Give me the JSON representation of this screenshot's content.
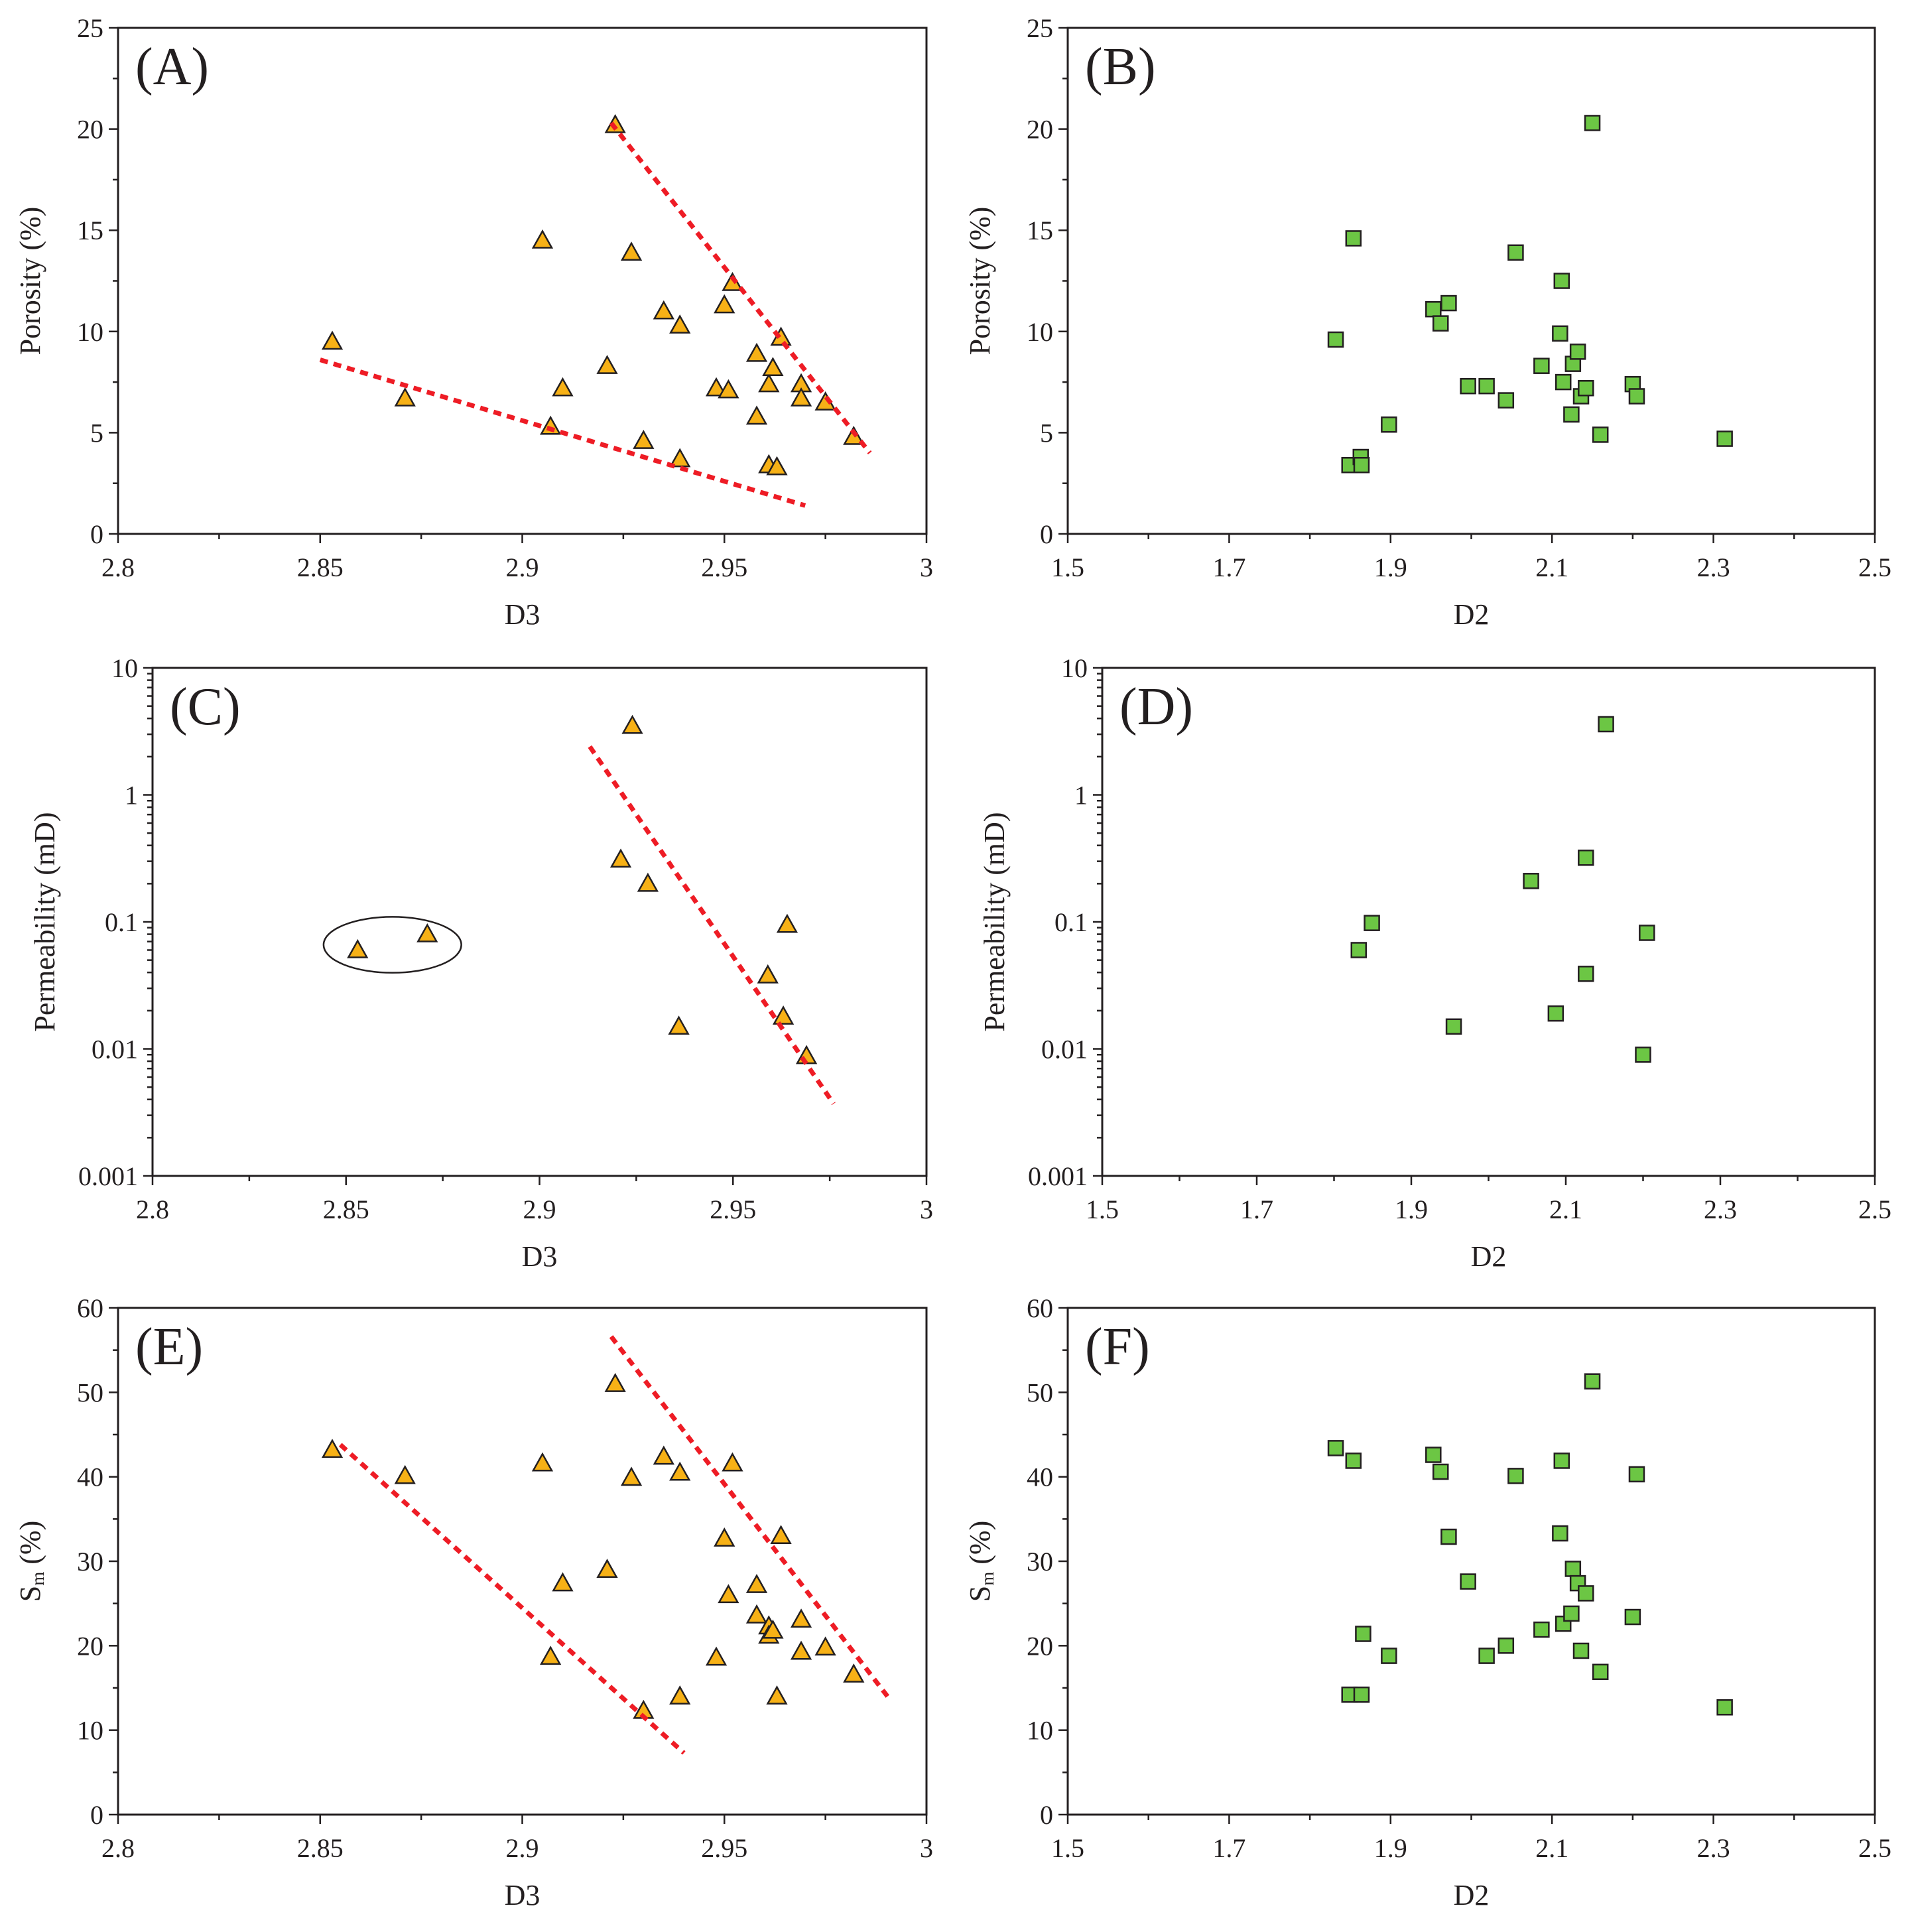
{
  "chart_data": [
    {
      "id": "A",
      "type": "scatter",
      "panel_label": "(A)",
      "xlabel": "D3",
      "ylabel": "Porosity (%)",
      "xlim": [
        2.8,
        3.0
      ],
      "ylim": [
        0,
        25
      ],
      "yscale": "linear",
      "xticks": [
        2.8,
        2.85,
        2.9,
        2.95,
        3.0
      ],
      "xtick_labels": [
        "2.8",
        "2.85",
        "2.9",
        "2.95",
        "3"
      ],
      "yticks": [
        0,
        5,
        10,
        15,
        20,
        25
      ],
      "ytick_labels": [
        "0",
        "5",
        "10",
        "15",
        "20",
        "25"
      ],
      "marker": "triangle",
      "color": "#f7b116",
      "points": [
        [
          2.853,
          9.5
        ],
        [
          2.871,
          6.7
        ],
        [
          2.905,
          14.5
        ],
        [
          2.907,
          5.3
        ],
        [
          2.91,
          7.2
        ],
        [
          2.921,
          8.3
        ],
        [
          2.923,
          20.2
        ],
        [
          2.927,
          13.9
        ],
        [
          2.93,
          4.6
        ],
        [
          2.935,
          11.0
        ],
        [
          2.939,
          10.3
        ],
        [
          2.939,
          3.7
        ],
        [
          2.948,
          7.2
        ],
        [
          2.95,
          11.3
        ],
        [
          2.951,
          7.1
        ],
        [
          2.952,
          12.4
        ],
        [
          2.958,
          8.9
        ],
        [
          2.958,
          5.8
        ],
        [
          2.961,
          7.4
        ],
        [
          2.961,
          3.4
        ],
        [
          2.962,
          8.2
        ],
        [
          2.963,
          3.3
        ],
        [
          2.964,
          9.7
        ],
        [
          2.969,
          7.4
        ],
        [
          2.969,
          6.7
        ],
        [
          2.975,
          6.5
        ],
        [
          2.982,
          4.8
        ]
      ],
      "trendlines": [
        [
          [
            2.85,
            8.6
          ],
          [
            2.97,
            1.4
          ]
        ],
        [
          [
            2.922,
            20.3
          ],
          [
            2.986,
            4.0
          ]
        ]
      ]
    },
    {
      "id": "B",
      "type": "scatter",
      "panel_label": "(B)",
      "xlabel": "D2",
      "ylabel": "Porosity (%)",
      "xlim": [
        1.5,
        2.5
      ],
      "ylim": [
        0,
        25
      ],
      "yscale": "linear",
      "xticks": [
        1.5,
        1.7,
        1.9,
        2.1,
        2.3,
        2.5
      ],
      "xtick_labels": [
        "1.5",
        "1.7",
        "1.9",
        "2.1",
        "2.3",
        "2.5"
      ],
      "yticks": [
        0,
        5,
        10,
        15,
        20,
        25
      ],
      "ytick_labels": [
        "0",
        "5",
        "10",
        "15",
        "20",
        "25"
      ],
      "marker": "square",
      "color": "#6cc644",
      "points": [
        [
          1.832,
          9.6
        ],
        [
          1.849,
          3.4
        ],
        [
          1.854,
          14.6
        ],
        [
          1.863,
          3.8
        ],
        [
          1.864,
          3.4
        ],
        [
          1.898,
          5.4
        ],
        [
          1.953,
          11.1
        ],
        [
          1.962,
          10.4
        ],
        [
          1.972,
          11.4
        ],
        [
          1.996,
          7.3
        ],
        [
          2.019,
          7.3
        ],
        [
          2.043,
          6.6
        ],
        [
          2.055,
          13.9
        ],
        [
          2.087,
          8.3
        ],
        [
          2.11,
          9.9
        ],
        [
          2.112,
          12.5
        ],
        [
          2.114,
          7.5
        ],
        [
          2.124,
          5.9
        ],
        [
          2.126,
          8.4
        ],
        [
          2.132,
          9.0
        ],
        [
          2.136,
          6.8
        ],
        [
          2.142,
          7.2
        ],
        [
          2.15,
          20.3
        ],
        [
          2.16,
          4.9
        ],
        [
          2.2,
          7.4
        ],
        [
          2.205,
          6.8
        ],
        [
          2.314,
          4.7
        ]
      ],
      "trendlines": []
    },
    {
      "id": "C",
      "type": "scatter",
      "panel_label": "(C)",
      "xlabel": "D3",
      "ylabel": "Permeability (mD)",
      "xlim": [
        2.8,
        3.0
      ],
      "ylim": [
        0.001,
        10
      ],
      "yscale": "log",
      "xticks": [
        2.8,
        2.85,
        2.9,
        2.95,
        3.0
      ],
      "xtick_labels": [
        "2.8",
        "2.85",
        "2.9",
        "2.95",
        "3"
      ],
      "yticks": [
        0.001,
        0.01,
        0.1,
        1,
        10
      ],
      "ytick_labels": [
        "0.001",
        "0.01",
        "0.1",
        "1",
        "10"
      ],
      "marker": "triangle",
      "color": "#f7b116",
      "points": [
        [
          2.853,
          0.06
        ],
        [
          2.871,
          0.08
        ],
        [
          2.921,
          0.31
        ],
        [
          2.924,
          3.5
        ],
        [
          2.928,
          0.2
        ],
        [
          2.936,
          0.015
        ],
        [
          2.959,
          0.038
        ],
        [
          2.963,
          0.018
        ],
        [
          2.964,
          0.095
        ],
        [
          2.969,
          0.0088
        ]
      ],
      "trendlines": [
        [
          [
            2.913,
            2.4
          ],
          [
            2.976,
            0.0037
          ]
        ]
      ],
      "ellipse": {
        "cx": 2.862,
        "cy": 0.066,
        "rx": 0.0178,
        "ry_decades": 0.22
      }
    },
    {
      "id": "D",
      "type": "scatter",
      "panel_label": "(D)",
      "xlabel": "D2",
      "ylabel": "Permeability (mD)",
      "xlim": [
        1.5,
        2.5
      ],
      "ylim": [
        0.001,
        10
      ],
      "yscale": "log",
      "xticks": [
        1.5,
        1.7,
        1.9,
        2.1,
        2.3,
        2.5
      ],
      "xtick_labels": [
        "1.5",
        "1.7",
        "1.9",
        "2.1",
        "2.3",
        "2.5"
      ],
      "yticks": [
        0.001,
        0.01,
        0.1,
        1,
        10
      ],
      "ytick_labels": [
        "0.001",
        "0.01",
        "0.1",
        "1",
        "10"
      ],
      "marker": "square",
      "color": "#6cc644",
      "points": [
        [
          1.832,
          0.06
        ],
        [
          1.849,
          0.098
        ],
        [
          1.955,
          0.015
        ],
        [
          2.055,
          0.21
        ],
        [
          2.087,
          0.019
        ],
        [
          2.126,
          0.32
        ],
        [
          2.126,
          0.039
        ],
        [
          2.152,
          3.6
        ],
        [
          2.2,
          0.009
        ],
        [
          2.205,
          0.082
        ]
      ],
      "trendlines": []
    },
    {
      "id": "E",
      "type": "scatter",
      "panel_label": "(E)",
      "xlabel": "D3",
      "ylabel": "Sm (%)",
      "ylabel_main": "S",
      "ylabel_sub": "m",
      "ylabel_rest": " (%)",
      "xlim": [
        2.8,
        3.0
      ],
      "ylim": [
        0,
        60
      ],
      "yscale": "linear",
      "xticks": [
        2.8,
        2.85,
        2.9,
        2.95,
        3.0
      ],
      "xtick_labels": [
        "2.8",
        "2.85",
        "2.9",
        "2.95",
        "3"
      ],
      "yticks": [
        0,
        10,
        20,
        30,
        40,
        50,
        60
      ],
      "ytick_labels": [
        "0",
        "10",
        "20",
        "30",
        "40",
        "50",
        "60"
      ],
      "marker": "triangle",
      "color": "#f7b116",
      "points": [
        [
          2.853,
          43.2
        ],
        [
          2.871,
          40.1
        ],
        [
          2.905,
          41.6
        ],
        [
          2.907,
          18.7
        ],
        [
          2.91,
          27.4
        ],
        [
          2.921,
          29.0
        ],
        [
          2.923,
          51.0
        ],
        [
          2.927,
          39.9
        ],
        [
          2.93,
          12.3
        ],
        [
          2.935,
          42.4
        ],
        [
          2.939,
          40.5
        ],
        [
          2.939,
          14.0
        ],
        [
          2.948,
          18.6
        ],
        [
          2.95,
          32.7
        ],
        [
          2.951,
          26.0
        ],
        [
          2.952,
          41.6
        ],
        [
          2.958,
          27.2
        ],
        [
          2.958,
          23.6
        ],
        [
          2.961,
          22.3
        ],
        [
          2.961,
          21.2
        ],
        [
          2.962,
          21.8
        ],
        [
          2.963,
          14.0
        ],
        [
          2.964,
          33.0
        ],
        [
          2.969,
          23.1
        ],
        [
          2.969,
          19.3
        ],
        [
          2.975,
          19.8
        ],
        [
          2.982,
          16.6
        ]
      ],
      "trendlines": [
        [
          [
            2.855,
            43.8
          ],
          [
            2.94,
            7.3
          ]
        ],
        [
          [
            2.922,
            56.6
          ],
          [
            2.991,
            13.6
          ]
        ]
      ]
    },
    {
      "id": "F",
      "type": "scatter",
      "panel_label": "(F)",
      "xlabel": "D2",
      "ylabel": "Sm (%)",
      "ylabel_main": "S",
      "ylabel_sub": "m",
      "ylabel_rest": " (%)",
      "xlim": [
        1.5,
        2.5
      ],
      "ylim": [
        0,
        60
      ],
      "yscale": "linear",
      "xticks": [
        1.5,
        1.7,
        1.9,
        2.1,
        2.3,
        2.5
      ],
      "xtick_labels": [
        "1.5",
        "1.7",
        "1.9",
        "2.1",
        "2.3",
        "2.5"
      ],
      "yticks": [
        0,
        10,
        20,
        30,
        40,
        50,
        60
      ],
      "ytick_labels": [
        "0",
        "10",
        "20",
        "30",
        "40",
        "50",
        "60"
      ],
      "marker": "square",
      "color": "#6cc644",
      "points": [
        [
          1.832,
          43.4
        ],
        [
          1.849,
          14.2
        ],
        [
          1.854,
          41.9
        ],
        [
          1.864,
          14.2
        ],
        [
          1.866,
          21.4
        ],
        [
          1.898,
          18.8
        ],
        [
          1.953,
          42.6
        ],
        [
          1.962,
          40.6
        ],
        [
          1.972,
          32.9
        ],
        [
          1.996,
          27.6
        ],
        [
          2.019,
          18.8
        ],
        [
          2.043,
          20.0
        ],
        [
          2.055,
          40.1
        ],
        [
          2.087,
          21.9
        ],
        [
          2.11,
          33.3
        ],
        [
          2.112,
          41.9
        ],
        [
          2.114,
          22.6
        ],
        [
          2.124,
          23.8
        ],
        [
          2.126,
          29.1
        ],
        [
          2.132,
          27.4
        ],
        [
          2.136,
          19.4
        ],
        [
          2.142,
          26.2
        ],
        [
          2.15,
          51.3
        ],
        [
          2.16,
          16.9
        ],
        [
          2.2,
          23.4
        ],
        [
          2.205,
          40.3
        ],
        [
          2.314,
          12.7
        ]
      ],
      "trendlines": []
    }
  ]
}
